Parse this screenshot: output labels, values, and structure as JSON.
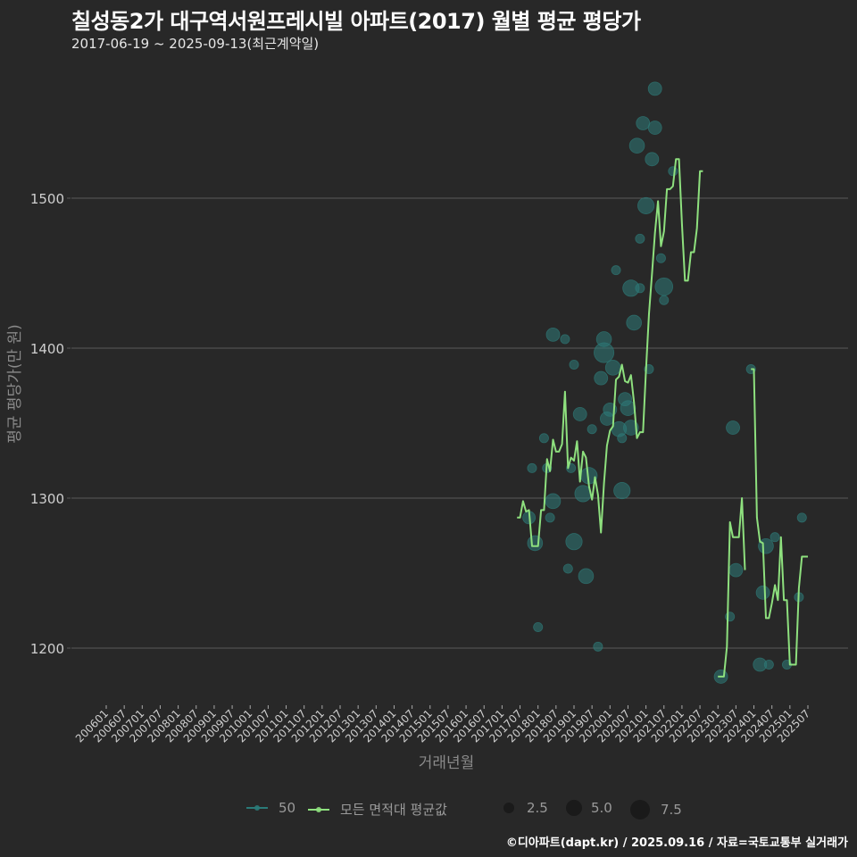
{
  "header": {
    "title": "칠성동2가 대구역서원프레시빌 아파트(2017) 월별 평균 평당가",
    "subtitle": "2017-06-19 ~ 2025-09-13(최근계약일)"
  },
  "footer": {
    "credit": "©디아파트(dapt.kr) / 2025.09.16 / 자료=국토교통부 실거래가"
  },
  "legend": {
    "series": [
      {
        "label": "50",
        "color": "#2a7a78"
      },
      {
        "label": "모든 면적대 평균값",
        "color": "#8ee07e"
      }
    ],
    "sizes": [
      {
        "label": "2.5",
        "diameter": 12
      },
      {
        "label": "5.0",
        "diameter": 18
      },
      {
        "label": "7.5",
        "diameter": 22
      }
    ]
  },
  "colors": {
    "background": "#282828",
    "grid": "#5a5a5a",
    "line": "#8ee07e",
    "bubble": "#2e7a78",
    "axis_text": "#cfcfcf",
    "axis_title": "#8a8a8a"
  },
  "chart_data": {
    "type": "line",
    "title": "칠성동2가 대구역서원프레시빌 아파트(2017) 월별 평균 평당가",
    "subtitle": "2017-06-19 ~ 2025-09-13(최근계약일)",
    "xlabel": "거래년월",
    "ylabel": "평균 평당가(만 원)",
    "ylim": [
      1162,
      1585
    ],
    "yticks": [
      1200,
      1300,
      1400,
      1500
    ],
    "grid": true,
    "legend_position": "bottom",
    "x_ticks": [
      "200601",
      "200607",
      "200701",
      "200707",
      "200801",
      "200807",
      "200901",
      "200907",
      "201001",
      "201007",
      "201101",
      "201107",
      "201201",
      "201207",
      "201301",
      "201307",
      "201401",
      "201407",
      "201501",
      "201507",
      "201601",
      "201607",
      "201701",
      "201707",
      "201801",
      "201807",
      "201901",
      "201907",
      "202001",
      "202007",
      "202101",
      "202107",
      "202201",
      "202207",
      "202301",
      "202307",
      "202401",
      "202407",
      "202501",
      "202507"
    ],
    "series": [
      {
        "name": "모든 면적대 평균값",
        "segments": [
          {
            "start": "201706",
            "values": [
              1287,
              1287,
              1298,
              1291,
              1292,
              1268,
              1268,
              1268,
              1292,
              1292,
              1326,
              1318,
              1339,
              1331,
              1331,
              1336,
              1371,
              1320,
              1327,
              1325,
              1338,
              1311,
              1331,
              1327,
              1308,
              1299,
              1314,
              1302,
              1277,
              1310,
              1335,
              1345,
              1348,
              1379,
              1381,
              1389,
              1378,
              1377,
              1382,
              1364,
              1340,
              1344,
              1344,
              1385,
              1423,
              1449,
              1477,
              1498,
              1468,
              1478,
              1506,
              1506,
              1508,
              1526,
              1526,
              1483,
              1445,
              1445,
              1464,
              1464,
              1480,
              1518,
              1518
            ]
          },
          {
            "start": "202301",
            "values": [
              1181,
              1181,
              1181,
              1201,
              1284,
              1274,
              1274,
              1274,
              1300,
              1252
            ]
          },
          {
            "start": "202312",
            "values": [
              1386,
              1386,
              1287,
              1271,
              1270,
              1220,
              1220,
              1230,
              1242,
              1232,
              1274,
              1232,
              1232,
              1189,
              1189,
              1189,
              1240,
              1261,
              1261,
              1261
            ]
          }
        ]
      }
    ],
    "bubbles": {
      "name": "50",
      "points": [
        {
          "x": "201710",
          "y": 1287,
          "size": 2.5
        },
        {
          "x": "201711",
          "y": 1320,
          "size": 1
        },
        {
          "x": "201712",
          "y": 1270,
          "size": 4
        },
        {
          "x": "201801",
          "y": 1214,
          "size": 1
        },
        {
          "x": "201803",
          "y": 1340,
          "size": 1
        },
        {
          "x": "201804",
          "y": 1320,
          "size": 1
        },
        {
          "x": "201805",
          "y": 1287,
          "size": 1
        },
        {
          "x": "201806",
          "y": 1409,
          "size": 3
        },
        {
          "x": "201806",
          "y": 1298,
          "size": 4
        },
        {
          "x": "201810",
          "y": 1406,
          "size": 1
        },
        {
          "x": "201811",
          "y": 1253,
          "size": 1
        },
        {
          "x": "201812",
          "y": 1320,
          "size": 1
        },
        {
          "x": "201901",
          "y": 1389,
          "size": 1
        },
        {
          "x": "201901",
          "y": 1271,
          "size": 5
        },
        {
          "x": "201903",
          "y": 1356,
          "size": 3
        },
        {
          "x": "201904",
          "y": 1303,
          "size": 5
        },
        {
          "x": "201905",
          "y": 1248,
          "size": 4
        },
        {
          "x": "201906",
          "y": 1315,
          "size": 5
        },
        {
          "x": "201907",
          "y": 1346,
          "size": 1
        },
        {
          "x": "201909",
          "y": 1201,
          "size": 1
        },
        {
          "x": "201910",
          "y": 1380,
          "size": 3
        },
        {
          "x": "201911",
          "y": 1406,
          "size": 4
        },
        {
          "x": "201911",
          "y": 1397,
          "size": 8
        },
        {
          "x": "201912",
          "y": 1353,
          "size": 3
        },
        {
          "x": "202001",
          "y": 1359,
          "size": 3
        },
        {
          "x": "202002",
          "y": 1387,
          "size": 4
        },
        {
          "x": "202003",
          "y": 1452,
          "size": 1
        },
        {
          "x": "202004",
          "y": 1346,
          "size": 4
        },
        {
          "x": "202005",
          "y": 1305,
          "size": 5
        },
        {
          "x": "202005",
          "y": 1340,
          "size": 1
        },
        {
          "x": "202006",
          "y": 1366,
          "size": 3
        },
        {
          "x": "202007",
          "y": 1360,
          "size": 4
        },
        {
          "x": "202008",
          "y": 1347,
          "size": 4
        },
        {
          "x": "202008",
          "y": 1440,
          "size": 5
        },
        {
          "x": "202009",
          "y": 1417,
          "size": 4
        },
        {
          "x": "202010",
          "y": 1535,
          "size": 4
        },
        {
          "x": "202011",
          "y": 1440,
          "size": 1
        },
        {
          "x": "202011",
          "y": 1473,
          "size": 1
        },
        {
          "x": "202012",
          "y": 1550,
          "size": 3
        },
        {
          "x": "202101",
          "y": 1495,
          "size": 5
        },
        {
          "x": "202102",
          "y": 1386,
          "size": 1
        },
        {
          "x": "202103",
          "y": 1526,
          "size": 3
        },
        {
          "x": "202104",
          "y": 1573,
          "size": 3
        },
        {
          "x": "202104",
          "y": 1547,
          "size": 3
        },
        {
          "x": "202106",
          "y": 1460,
          "size": 1
        },
        {
          "x": "202107",
          "y": 1441,
          "size": 6
        },
        {
          "x": "202107",
          "y": 1432,
          "size": 1
        },
        {
          "x": "202110",
          "y": 1518,
          "size": 1
        },
        {
          "x": "202302",
          "y": 1181,
          "size": 3
        },
        {
          "x": "202305",
          "y": 1221,
          "size": 1
        },
        {
          "x": "202306",
          "y": 1347,
          "size": 3
        },
        {
          "x": "202307",
          "y": 1252,
          "size": 3
        },
        {
          "x": "202312",
          "y": 1386,
          "size": 1
        },
        {
          "x": "202403",
          "y": 1189,
          "size": 3
        },
        {
          "x": "202404",
          "y": 1237,
          "size": 3
        },
        {
          "x": "202405",
          "y": 1268,
          "size": 4
        },
        {
          "x": "202406",
          "y": 1189,
          "size": 1
        },
        {
          "x": "202408",
          "y": 1274,
          "size": 1
        },
        {
          "x": "202412",
          "y": 1189,
          "size": 1
        },
        {
          "x": "202504",
          "y": 1234,
          "size": 1
        },
        {
          "x": "202505",
          "y": 1287,
          "size": 1
        }
      ]
    }
  }
}
